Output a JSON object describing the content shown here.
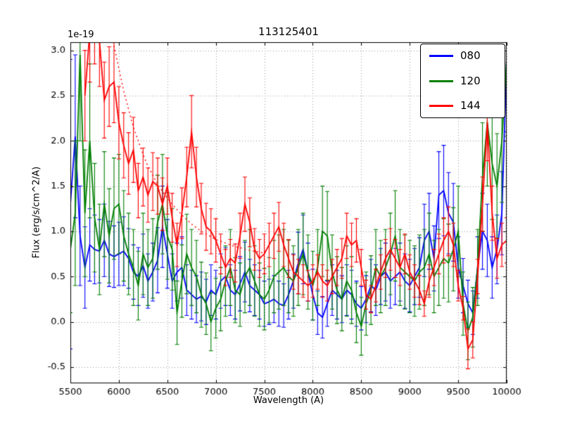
{
  "chart_data": {
    "type": "line",
    "title": "113125401",
    "xlabel": "Wavelength (A)",
    "ylabel": "Flux (erg/s/cm^2/A)",
    "y_offset_text": "1e-19",
    "grid": true,
    "legend_position": "upper right",
    "xlim": [
      5500,
      10000
    ],
    "ylim": [
      -0.68,
      3.09
    ],
    "xticks": [
      5500,
      6000,
      6500,
      7000,
      7500,
      8000,
      8500,
      9000,
      9500,
      10000
    ],
    "xtick_labels": [
      "5500",
      "6000",
      "6500",
      "7000",
      "7500",
      "8000",
      "8500",
      "9000",
      "9500",
      "10000"
    ],
    "yticks": [
      -0.5,
      0.0,
      0.5,
      1.0,
      1.5,
      2.0,
      2.5,
      3.0
    ],
    "ytick_labels": [
      "-0.5",
      "0.0",
      "0.5",
      "1.0",
      "1.5",
      "2.0",
      "2.5",
      "3.0"
    ],
    "x": [
      5500,
      5550,
      5600,
      5650,
      5700,
      5750,
      5800,
      5850,
      5900,
      5950,
      6000,
      6050,
      6100,
      6150,
      6200,
      6250,
      6300,
      6350,
      6400,
      6450,
      6500,
      6550,
      6600,
      6650,
      6700,
      6750,
      6800,
      6850,
      6900,
      6950,
      7000,
      7050,
      7100,
      7150,
      7200,
      7250,
      7300,
      7350,
      7400,
      7450,
      7500,
      7550,
      7600,
      7650,
      7700,
      7750,
      7800,
      7850,
      7900,
      7950,
      8000,
      8050,
      8100,
      8150,
      8200,
      8250,
      8300,
      8350,
      8400,
      8450,
      8500,
      8550,
      8600,
      8650,
      8700,
      8750,
      8800,
      8850,
      8900,
      8950,
      9000,
      9050,
      9100,
      9150,
      9200,
      9250,
      9300,
      9350,
      9400,
      9450,
      9500,
      9550,
      9600,
      9650,
      9700,
      9750,
      9800,
      9850,
      9900,
      9950,
      10000
    ],
    "series": [
      {
        "label": "080",
        "color": "#0000ff",
        "style": "solid",
        "in_legend": true,
        "y": [
          1.3,
          2.05,
          0.95,
          0.6,
          0.85,
          0.8,
          0.78,
          0.9,
          0.75,
          0.72,
          0.75,
          0.78,
          0.7,
          0.55,
          0.5,
          0.62,
          0.45,
          0.55,
          0.68,
          1.05,
          0.75,
          0.45,
          0.55,
          0.6,
          0.35,
          0.3,
          0.25,
          0.28,
          0.22,
          0.35,
          0.3,
          0.45,
          0.5,
          0.35,
          0.3,
          0.42,
          0.55,
          0.4,
          0.35,
          0.3,
          0.2,
          0.22,
          0.25,
          0.2,
          0.18,
          0.3,
          0.45,
          0.65,
          0.8,
          0.55,
          0.3,
          0.1,
          0.05,
          0.2,
          0.35,
          0.3,
          0.25,
          0.35,
          0.3,
          0.2,
          0.15,
          0.25,
          0.4,
          0.35,
          0.5,
          0.55,
          0.45,
          0.5,
          0.55,
          0.45,
          0.4,
          0.5,
          0.6,
          0.9,
          1.0,
          0.7,
          1.4,
          1.45,
          1.2,
          1.1,
          0.6,
          0.4,
          0.2,
          0.1,
          0.6,
          1.0,
          0.9,
          0.6,
          0.8,
          1.2,
          2.9
        ],
        "err": [
          1.6,
          0.9,
          0.55,
          0.45,
          0.4,
          0.38,
          0.35,
          0.4,
          0.36,
          0.34,
          0.35,
          0.38,
          0.33,
          0.3,
          0.32,
          0.35,
          0.3,
          0.32,
          0.36,
          0.45,
          0.38,
          0.3,
          0.32,
          0.34,
          0.28,
          0.27,
          0.26,
          0.27,
          0.25,
          0.28,
          0.27,
          0.3,
          0.32,
          0.28,
          0.27,
          0.3,
          0.33,
          0.29,
          0.28,
          0.27,
          0.25,
          0.25,
          0.26,
          0.25,
          0.24,
          0.27,
          0.3,
          0.34,
          0.38,
          0.32,
          0.28,
          0.24,
          0.23,
          0.25,
          0.28,
          0.27,
          0.26,
          0.28,
          0.27,
          0.25,
          0.24,
          0.26,
          0.29,
          0.28,
          0.31,
          0.32,
          0.3,
          0.31,
          0.32,
          0.3,
          0.29,
          0.31,
          0.33,
          0.4,
          0.42,
          0.36,
          0.48,
          0.5,
          0.45,
          0.43,
          0.34,
          0.3,
          0.26,
          0.24,
          0.34,
          0.42,
          0.4,
          0.34,
          0.38,
          0.46,
          0.8
        ]
      },
      {
        "label": "120",
        "color": "#007f00",
        "style": "solid",
        "in_legend": true,
        "y": [
          0.8,
          1.2,
          2.95,
          1.2,
          2.0,
          1.15,
          0.8,
          1.3,
          0.95,
          1.25,
          1.3,
          0.95,
          0.75,
          0.6,
          0.4,
          0.75,
          0.6,
          0.7,
          1.1,
          1.3,
          0.95,
          0.8,
          0.1,
          0.45,
          0.75,
          0.6,
          0.5,
          0.3,
          0.2,
          0.0,
          0.15,
          0.25,
          0.45,
          0.6,
          0.35,
          0.3,
          0.5,
          0.6,
          0.45,
          0.3,
          0.25,
          0.35,
          0.5,
          0.55,
          0.6,
          0.5,
          0.45,
          0.6,
          0.75,
          0.55,
          0.4,
          0.6,
          1.0,
          0.95,
          0.55,
          0.35,
          0.25,
          0.45,
          0.35,
          0.1,
          -0.05,
          0.2,
          0.35,
          0.6,
          0.5,
          0.6,
          0.75,
          0.95,
          0.6,
          0.55,
          0.5,
          0.45,
          0.55,
          0.6,
          0.75,
          0.5,
          0.6,
          0.7,
          0.65,
          0.8,
          1.0,
          0.2,
          -0.1,
          0.05,
          0.6,
          1.6,
          2.2,
          1.75,
          1.5,
          2.0,
          2.9
        ],
        "err": [
          0.7,
          0.8,
          0.95,
          0.7,
          0.85,
          0.6,
          0.5,
          0.58,
          0.52,
          0.56,
          0.55,
          0.5,
          0.45,
          0.42,
          0.38,
          0.45,
          0.42,
          0.44,
          0.52,
          0.55,
          0.48,
          0.45,
          0.35,
          0.4,
          0.44,
          0.42,
          0.4,
          0.36,
          0.34,
          0.32,
          0.33,
          0.35,
          0.39,
          0.42,
          0.36,
          0.35,
          0.4,
          0.42,
          0.39,
          0.35,
          0.34,
          0.36,
          0.4,
          0.41,
          0.42,
          0.4,
          0.39,
          0.42,
          0.45,
          0.41,
          0.38,
          0.42,
          0.5,
          0.49,
          0.41,
          0.37,
          0.35,
          0.39,
          0.37,
          0.33,
          0.32,
          0.35,
          0.38,
          0.42,
          0.4,
          0.42,
          0.45,
          0.5,
          0.42,
          0.41,
          0.4,
          0.39,
          0.41,
          0.42,
          0.45,
          0.4,
          0.42,
          0.44,
          0.43,
          0.46,
          0.5,
          0.35,
          0.32,
          0.33,
          0.42,
          0.6,
          0.7,
          0.62,
          0.58,
          0.68,
          0.85
        ]
      },
      {
        "label": "144",
        "color": "#ff0000",
        "style": "solid",
        "in_legend": true,
        "y": [
          null,
          null,
          null,
          2.5,
          3.2,
          3.4,
          3.1,
          2.45,
          2.6,
          2.65,
          2.2,
          1.95,
          1.75,
          1.9,
          1.45,
          1.6,
          1.4,
          1.55,
          1.5,
          1.3,
          1.5,
          1.15,
          0.85,
          1.2,
          1.6,
          2.1,
          1.6,
          1.25,
          1.05,
          1.0,
          0.9,
          0.75,
          0.6,
          0.7,
          0.65,
          0.95,
          1.3,
          1.1,
          0.8,
          0.7,
          0.75,
          0.85,
          0.95,
          1.05,
          0.85,
          0.7,
          0.55,
          0.5,
          0.45,
          0.4,
          0.45,
          0.55,
          0.45,
          0.4,
          0.5,
          0.6,
          0.7,
          0.95,
          0.85,
          0.9,
          0.6,
          0.3,
          0.25,
          0.4,
          0.55,
          0.7,
          0.8,
          0.7,
          0.6,
          0.75,
          0.55,
          0.45,
          0.35,
          0.2,
          0.45,
          0.6,
          0.75,
          0.9,
          1.0,
          0.85,
          0.4,
          0.15,
          -0.3,
          -0.2,
          0.5,
          1.3,
          2.2,
          1.2,
          0.7,
          0.85,
          0.9
        ],
        "err": [
          null,
          null,
          null,
          0.5,
          0.55,
          0.55,
          0.5,
          0.42,
          0.44,
          0.45,
          0.4,
          0.36,
          0.34,
          0.36,
          0.3,
          0.32,
          0.3,
          0.32,
          0.31,
          0.29,
          0.31,
          0.27,
          0.24,
          0.28,
          0.33,
          0.4,
          0.33,
          0.28,
          0.26,
          0.25,
          0.24,
          0.22,
          0.2,
          0.21,
          0.21,
          0.25,
          0.3,
          0.27,
          0.23,
          0.21,
          0.22,
          0.24,
          0.25,
          0.27,
          0.24,
          0.21,
          0.19,
          0.19,
          0.18,
          0.17,
          0.18,
          0.19,
          0.18,
          0.17,
          0.19,
          0.2,
          0.22,
          0.25,
          0.24,
          0.24,
          0.2,
          0.16,
          0.15,
          0.18,
          0.19,
          0.21,
          0.23,
          0.21,
          0.2,
          0.22,
          0.19,
          0.18,
          0.16,
          0.14,
          0.18,
          0.2,
          0.22,
          0.25,
          0.27,
          0.24,
          0.17,
          0.13,
          0.22,
          0.2,
          0.19,
          0.3,
          0.42,
          0.3,
          0.22,
          0.24,
          0.25
        ]
      },
      {
        "label": "144-model",
        "color": "#ff0000",
        "style": "dotted",
        "in_legend": false,
        "x": [
          5850,
          5900,
          5950,
          6000,
          6050,
          6100,
          6150,
          6200,
          6250,
          6300,
          6350,
          6400,
          6450,
          6500,
          6550,
          6600,
          6650,
          6700,
          6750,
          6800,
          6850,
          6900,
          6950,
          7000,
          7050,
          7100,
          7150,
          7200,
          7250,
          7300,
          7350,
          7400,
          7450,
          7500
        ],
        "y": [
          3.6,
          3.3,
          3.05,
          2.8,
          2.55,
          2.35,
          2.15,
          2.0,
          1.85,
          1.72,
          1.62,
          1.52,
          1.44,
          1.37,
          1.3,
          1.24,
          1.18,
          1.13,
          1.08,
          1.04,
          1.0,
          0.97,
          0.94,
          0.91,
          0.89,
          0.87,
          0.85,
          0.83,
          0.82,
          0.8,
          0.79,
          0.78,
          0.77,
          0.76
        ]
      }
    ]
  }
}
